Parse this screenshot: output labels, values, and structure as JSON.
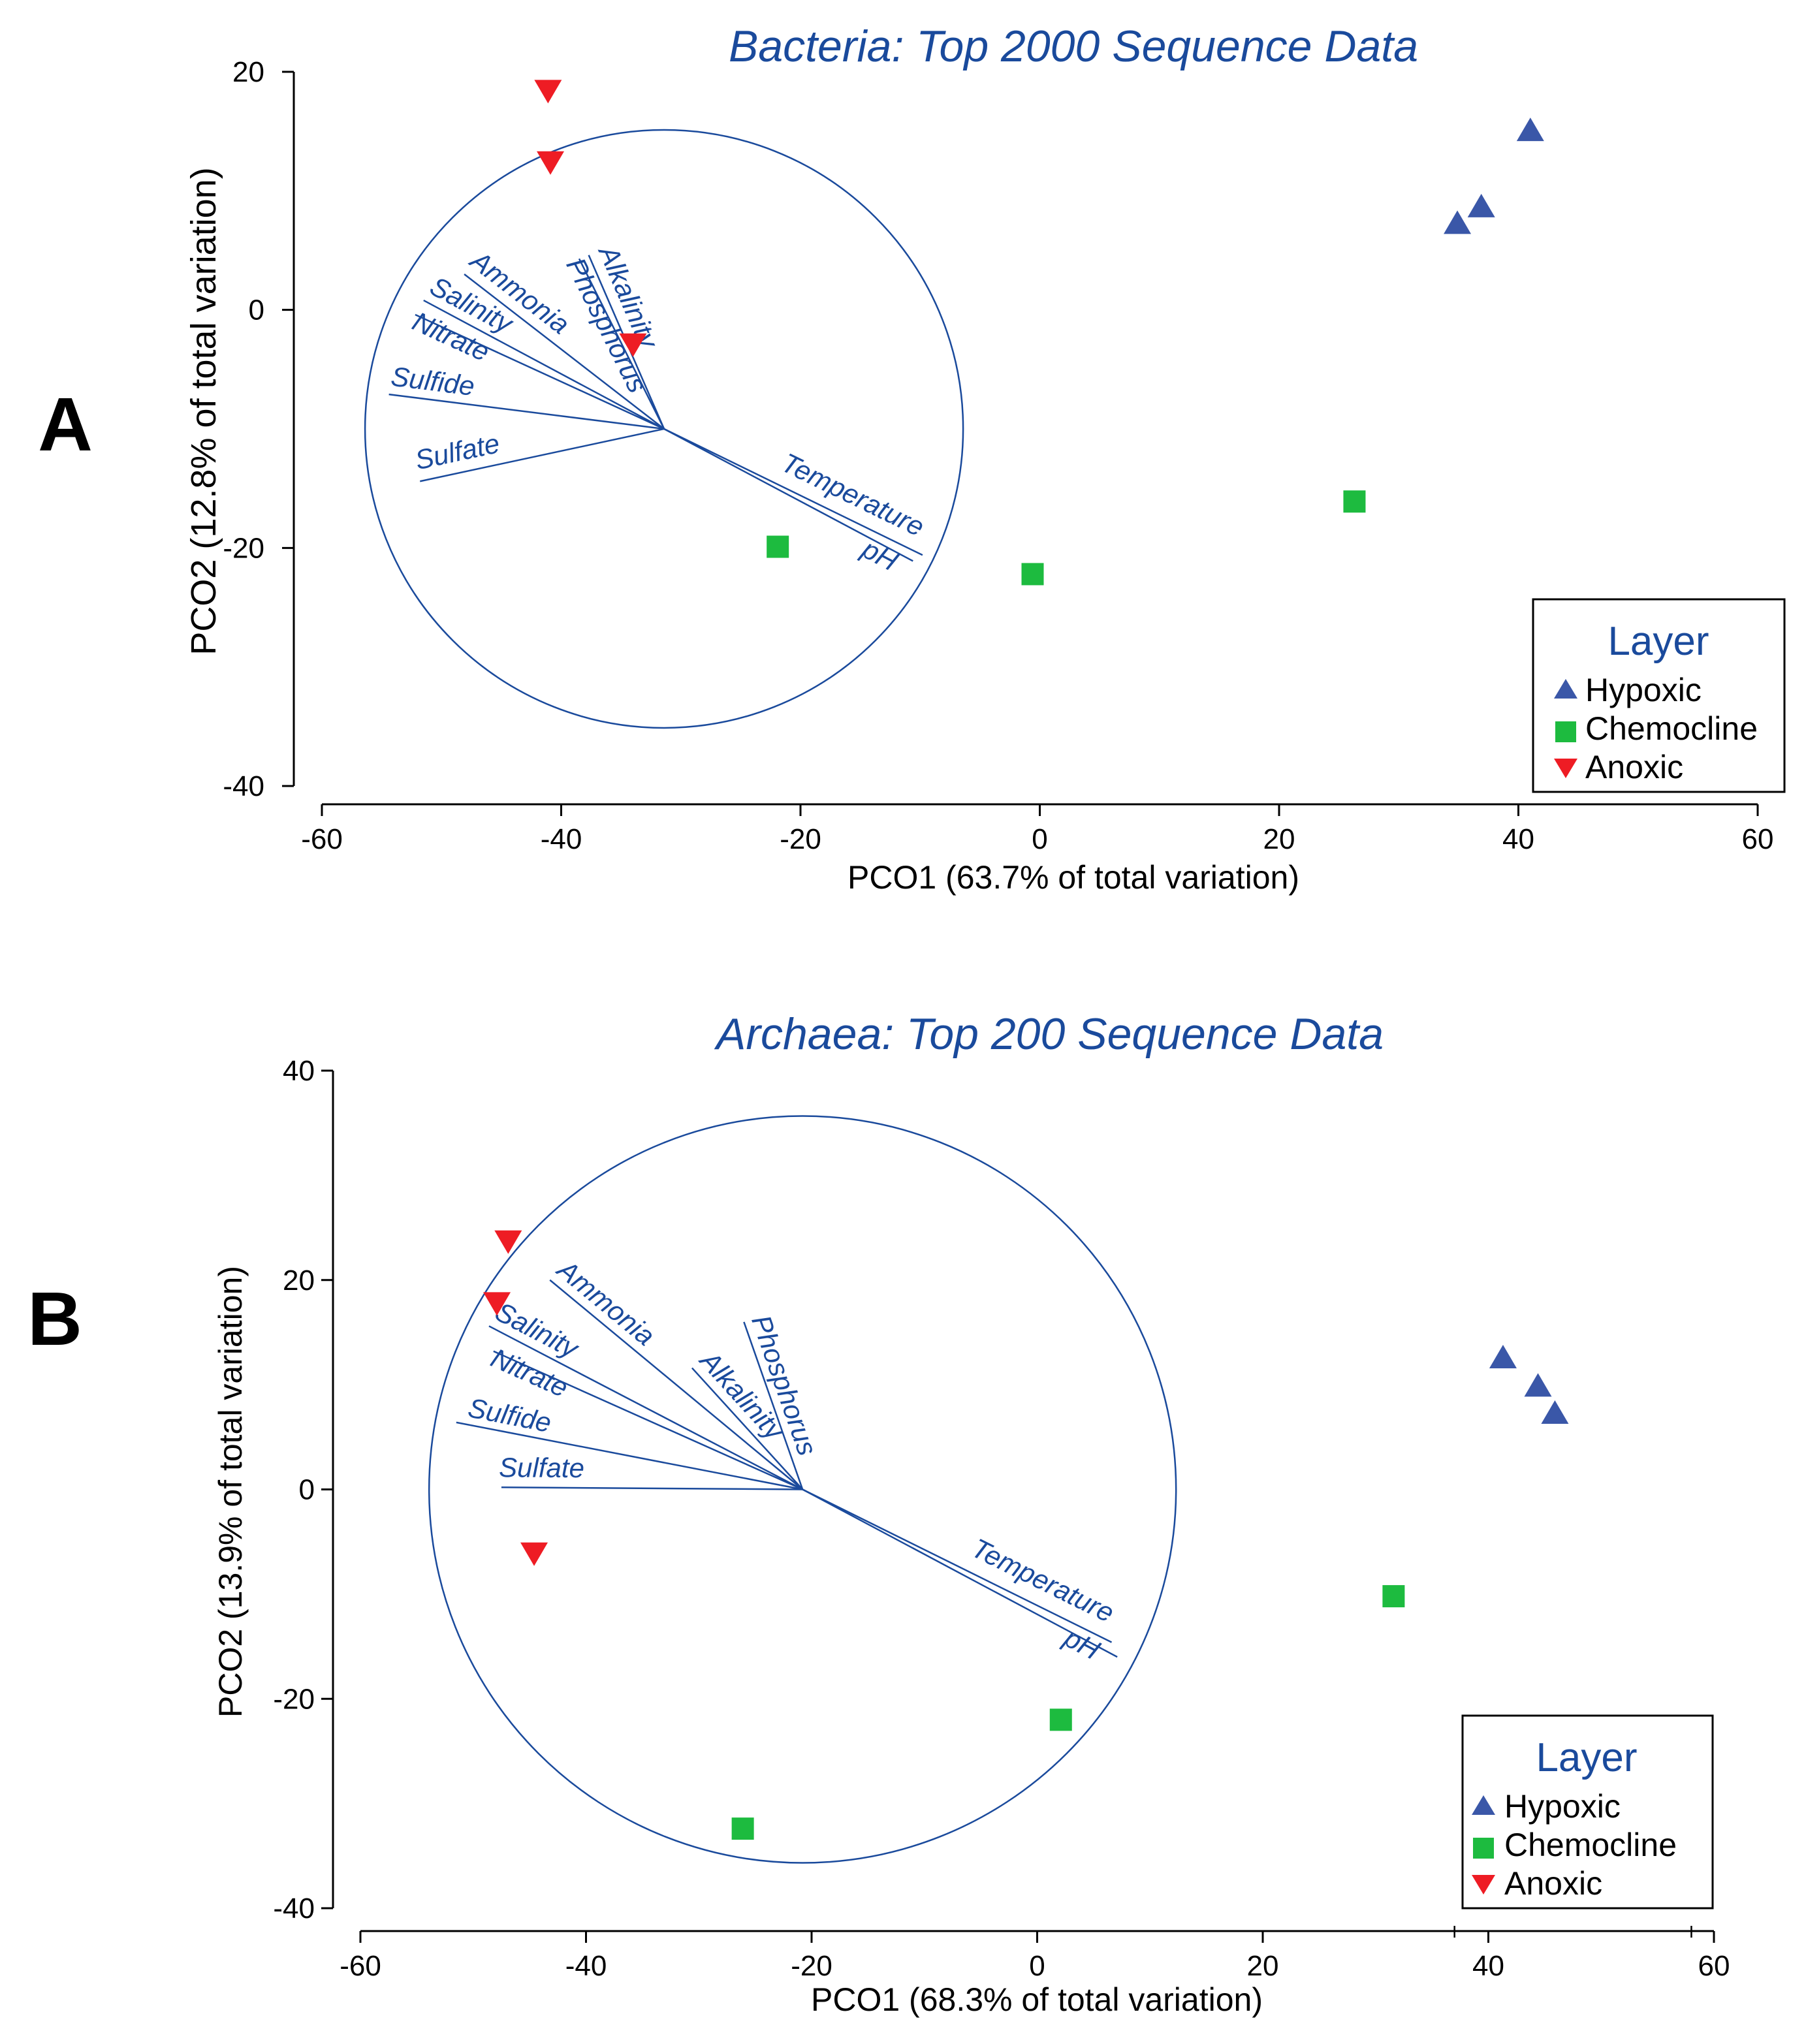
{
  "colors": {
    "blue": "#1a4a9c",
    "hypoxic": "#3a57a8",
    "chemocline": "#1dbb3f",
    "anoxic": "#ee1c24",
    "axis": "#000000"
  },
  "chart_data": [
    {
      "panel": "A",
      "type": "scatter",
      "title": "Bacteria: Top 2000 Sequence Data",
      "xlabel": "PCO1 (63.7% of total variation)",
      "ylabel": "PCO2 (12.8% of total variation)",
      "xlim": [
        -60,
        60
      ],
      "ylim": [
        -40,
        20
      ],
      "xticks": [
        -60,
        -40,
        -20,
        0,
        20,
        40,
        60
      ],
      "yticks": [
        -40,
        -20,
        0,
        20
      ],
      "legend_title": "Layer",
      "legend_position": "bottom-right",
      "series": [
        {
          "name": "Hypoxic",
          "marker": "triangle-up",
          "points": [
            [
              41,
              15
            ],
            [
              36.9,
              8.6
            ],
            [
              34.9,
              7.2
            ]
          ]
        },
        {
          "name": "Chemocline",
          "marker": "square",
          "points": [
            [
              26.3,
              -16.1
            ],
            [
              -0.6,
              -22.2
            ],
            [
              -21.9,
              -19.9
            ]
          ]
        },
        {
          "name": "Anoxic",
          "marker": "triangle-down",
          "points": [
            [
              -41.1,
              18.5
            ],
            [
              -40.9,
              12.5
            ],
            [
              -34,
              -2.8
            ]
          ]
        }
      ],
      "vectors": {
        "origin": [
          -31.4,
          -10
        ],
        "circle_radius": 25,
        "items": [
          {
            "label": "Alkalinity",
            "end": [
              -37.7,
              4.6
            ]
          },
          {
            "label": "Phosphorus",
            "end": [
              -38.5,
              4.3
            ]
          },
          {
            "label": "Ammonia",
            "end": [
              -48.1,
              3.0
            ]
          },
          {
            "label": "Salinity",
            "end": [
              -51.5,
              0.8
            ]
          },
          {
            "label": "Nitrate",
            "end": [
              -52.2,
              -0.4
            ]
          },
          {
            "label": "Sulfide",
            "end": [
              -54.4,
              -7.1
            ]
          },
          {
            "label": "Sulfate",
            "end": [
              -51.8,
              -14.4
            ]
          },
          {
            "label": "Temperature",
            "end": [
              -9.8,
              -20.6
            ]
          },
          {
            "label": "pH",
            "end": [
              -10.6,
              -21.1
            ]
          }
        ]
      }
    },
    {
      "panel": "B",
      "type": "scatter",
      "title": "Archaea: Top 200 Sequence Data",
      "xlabel": "PCO1 (68.3% of total variation)",
      "ylabel": "PCO2 (13.9% of total variation)",
      "xlim": [
        -60,
        60
      ],
      "ylim": [
        -40,
        40
      ],
      "xticks": [
        -60,
        -40,
        -20,
        0,
        20,
        40,
        60
      ],
      "yticks": [
        -40,
        -20,
        0,
        20,
        40
      ],
      "legend_title": "Layer",
      "legend_position": "bottom-right",
      "series": [
        {
          "name": "Hypoxic",
          "marker": "triangle-up",
          "points": [
            [
              41.3,
              12.5
            ],
            [
              44.4,
              9.8
            ],
            [
              45.9,
              7.2
            ]
          ]
        },
        {
          "name": "Chemocline",
          "marker": "square",
          "points": [
            [
              31.6,
              -10.2
            ],
            [
              2.1,
              -22
            ],
            [
              -26.1,
              -32.4
            ]
          ]
        },
        {
          "name": "Anoxic",
          "marker": "triangle-down",
          "points": [
            [
              -46.9,
              23.8
            ],
            [
              -47.9,
              17.9
            ],
            [
              -44.6,
              -6
            ]
          ]
        }
      ],
      "vectors": {
        "origin": [
          -20.8,
          0
        ],
        "circle_radius": 33,
        "items": [
          {
            "label": "Phosphorus",
            "end": [
              -26,
              16
            ]
          },
          {
            "label": "Alkalinity",
            "end": [
              -30.6,
              11.6
            ]
          },
          {
            "label": "Ammonia",
            "end": [
              -43.2,
              20
            ]
          },
          {
            "label": "Salinity",
            "end": [
              -48.6,
              15.6
            ]
          },
          {
            "label": "Nitrate",
            "end": [
              -48.2,
              13.2
            ]
          },
          {
            "label": "Sulfide",
            "end": [
              -51.5,
              6.4
            ]
          },
          {
            "label": "Sulfate",
            "end": [
              -47.5,
              0.2
            ]
          },
          {
            "label": "Temperature",
            "end": [
              6.6,
              -14.6
            ]
          },
          {
            "label": "pH",
            "end": [
              7.1,
              -16
            ]
          }
        ]
      }
    }
  ]
}
